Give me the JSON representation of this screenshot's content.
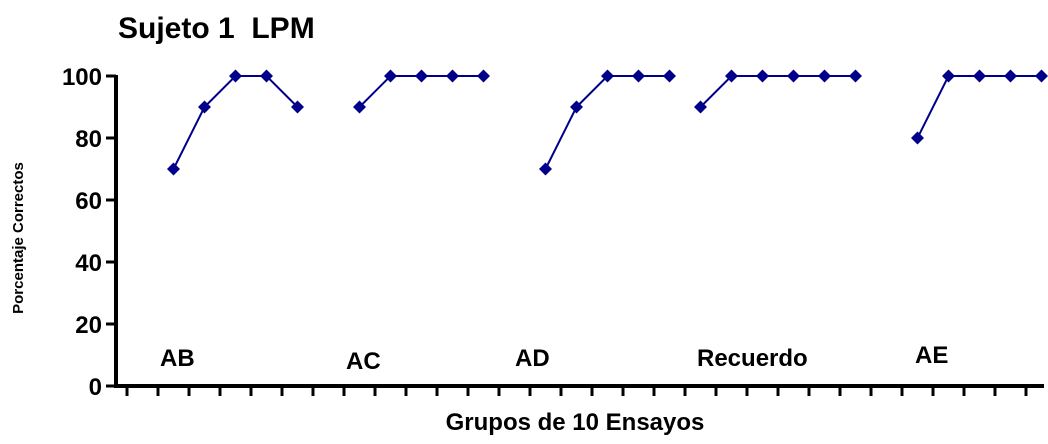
{
  "chart_data": {
    "type": "line",
    "title": "Sujeto 1  LPM",
    "xlabel": "Grupos de 10 Ensayos",
    "ylabel": "Porcentaje Correctos",
    "ylim": [
      0,
      100
    ],
    "yticks": [
      "0",
      "20",
      "40",
      "60",
      "80",
      "100"
    ],
    "num_groups": 30,
    "grid": false,
    "color": "#00008B",
    "segments": [
      {
        "label": "AB",
        "x": [
          2,
          3,
          4,
          5,
          6,
          7
        ],
        "values": [
          70,
          90,
          100,
          100,
          90,
          null
        ]
      },
      {
        "label": "AC",
        "x": [
          8,
          9,
          10,
          11,
          12,
          13
        ],
        "values": [
          90,
          100,
          100,
          100,
          100,
          null
        ]
      },
      {
        "label": "AD",
        "x": [
          14,
          15,
          16,
          17,
          18
        ],
        "values": [
          70,
          90,
          100,
          100,
          100
        ]
      },
      {
        "label": "Recuerdo",
        "x": [
          19,
          20,
          21,
          22,
          23,
          24,
          25
        ],
        "values": [
          90,
          100,
          100,
          100,
          100,
          100,
          null
        ]
      },
      {
        "label": "AE",
        "x": [
          26,
          27,
          28,
          29,
          30
        ],
        "values": [
          80,
          100,
          100,
          100,
          100
        ]
      }
    ]
  }
}
